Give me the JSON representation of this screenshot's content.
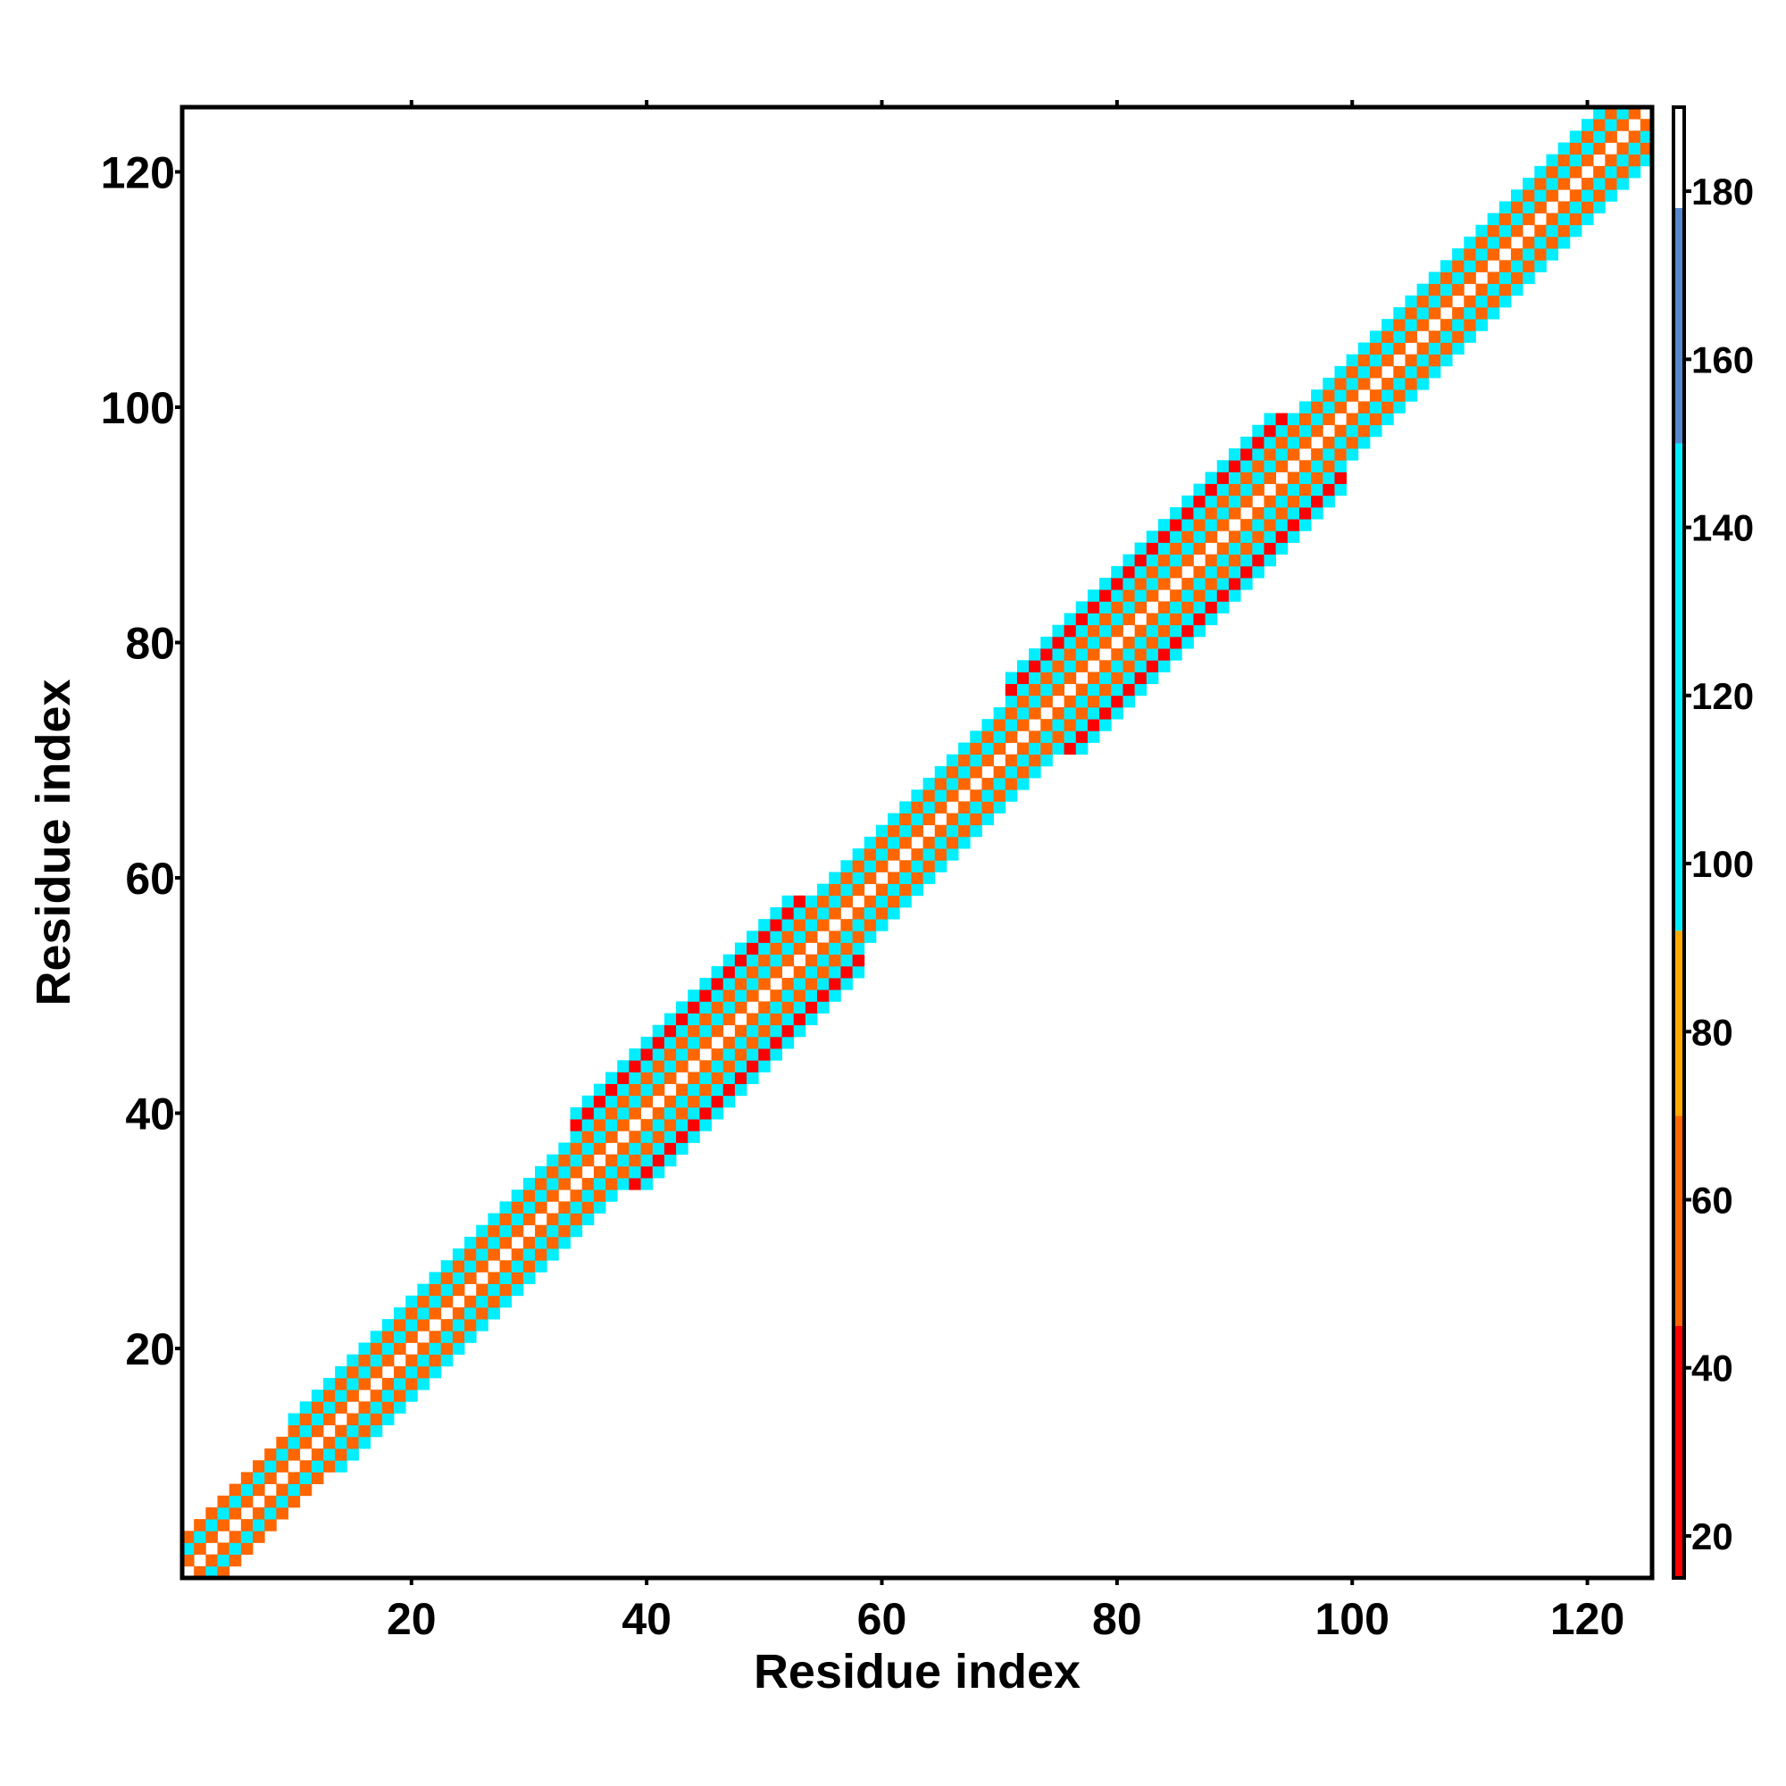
{
  "chart_data": {
    "type": "heatmap",
    "title": "",
    "xlabel": "Residue index",
    "ylabel": "Residue index",
    "xlim": [
      0.5,
      125.5
    ],
    "ylim": [
      0.5,
      125.5
    ],
    "xticks": [
      20,
      40,
      60,
      80,
      100,
      120
    ],
    "yticks": [
      20,
      40,
      60,
      80,
      100,
      120
    ],
    "xtick_labels": [
      "20",
      "40",
      "60",
      "80",
      "100",
      "120"
    ],
    "ytick_labels": [
      "20",
      "40",
      "60",
      "80",
      "100",
      "120"
    ],
    "grid": false,
    "legend": "none",
    "matrix_size": 125,
    "description_of_values": "symmetric contact/angle matrix; cells only near the diagonal band are colored, value depends on |i-j| offset",
    "offset_values": {
      "0": 190,
      "1": 55,
      "2": 100,
      "3": 50,
      "4": 105,
      "5": 30,
      "6": 110
    },
    "band_half_width_by_residue": [
      {
        "from": 1,
        "to": 9,
        "width": 3
      },
      {
        "from": 10,
        "to": 33,
        "width": 4
      },
      {
        "from": 34,
        "to": 58,
        "width": 6
      },
      {
        "from": 59,
        "to": 70,
        "width": 4
      },
      {
        "from": 71,
        "to": 99,
        "width": 6
      },
      {
        "from": 100,
        "to": 125,
        "width": 4
      }
    ],
    "colorbar": {
      "min": 15,
      "max": 190,
      "ticks": [
        20,
        40,
        60,
        80,
        100,
        120,
        140,
        160,
        180
      ],
      "tick_labels": [
        "20",
        "40",
        "60",
        "80",
        "100",
        "120",
        "140",
        "160",
        "180"
      ],
      "bins": [
        {
          "from": 15,
          "to": 45,
          "color": "#ff0000"
        },
        {
          "from": 45,
          "to": 70,
          "color": "#ff6600"
        },
        {
          "from": 70,
          "to": 92,
          "color": "#ffaa00"
        },
        {
          "from": 92,
          "to": 150,
          "color": "#00eeff"
        },
        {
          "from": 150,
          "to": 178,
          "color": "#5588cc"
        },
        {
          "from": 178,
          "to": 190,
          "color": "#ffffff"
        }
      ]
    }
  }
}
